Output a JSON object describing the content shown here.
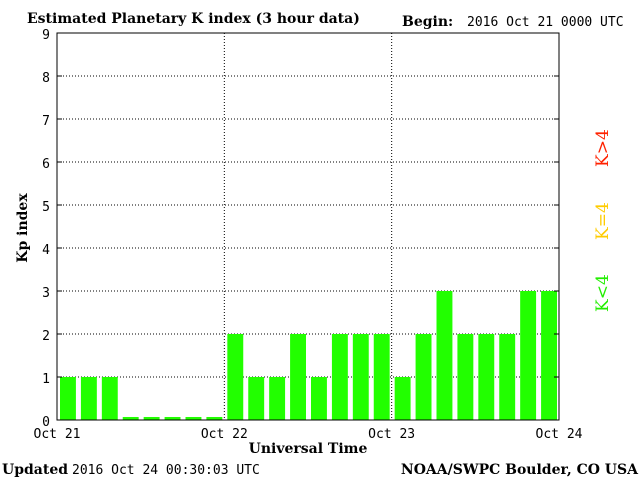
{
  "chart_data": {
    "type": "bar",
    "title": "Estimated Planetary K index (3 hour data)",
    "begin_label": "Begin:",
    "begin_value": "2016 Oct 21 0000 UTC",
    "xlabel": "Universal Time",
    "ylabel": "Kp index",
    "ylim": [
      0,
      9
    ],
    "yticks": [
      "0",
      "1",
      "2",
      "3",
      "4",
      "5",
      "6",
      "7",
      "8",
      "9"
    ],
    "xticks": [
      "Oct 21",
      "Oct 22",
      "Oct 23",
      "Oct 24"
    ],
    "grid": true,
    "values": [
      1,
      1,
      1,
      0,
      0,
      0,
      0,
      0,
      2,
      1,
      1,
      2,
      1,
      2,
      2,
      2,
      1,
      2,
      3,
      2,
      2,
      2,
      3,
      3
    ],
    "bar_color": "#22ff00",
    "legend": [
      {
        "label": "K<4",
        "color": "#22ee00"
      },
      {
        "label": "K=4",
        "color": "#ffcc00"
      },
      {
        "label": "K>4",
        "color": "#ff2200"
      }
    ],
    "legend_placement": "right"
  },
  "footer": {
    "updated_label": "Updated",
    "updated_value": "2016 Oct 24 00:30:03 UTC",
    "source": "NOAA/SWPC Boulder, CO USA"
  }
}
